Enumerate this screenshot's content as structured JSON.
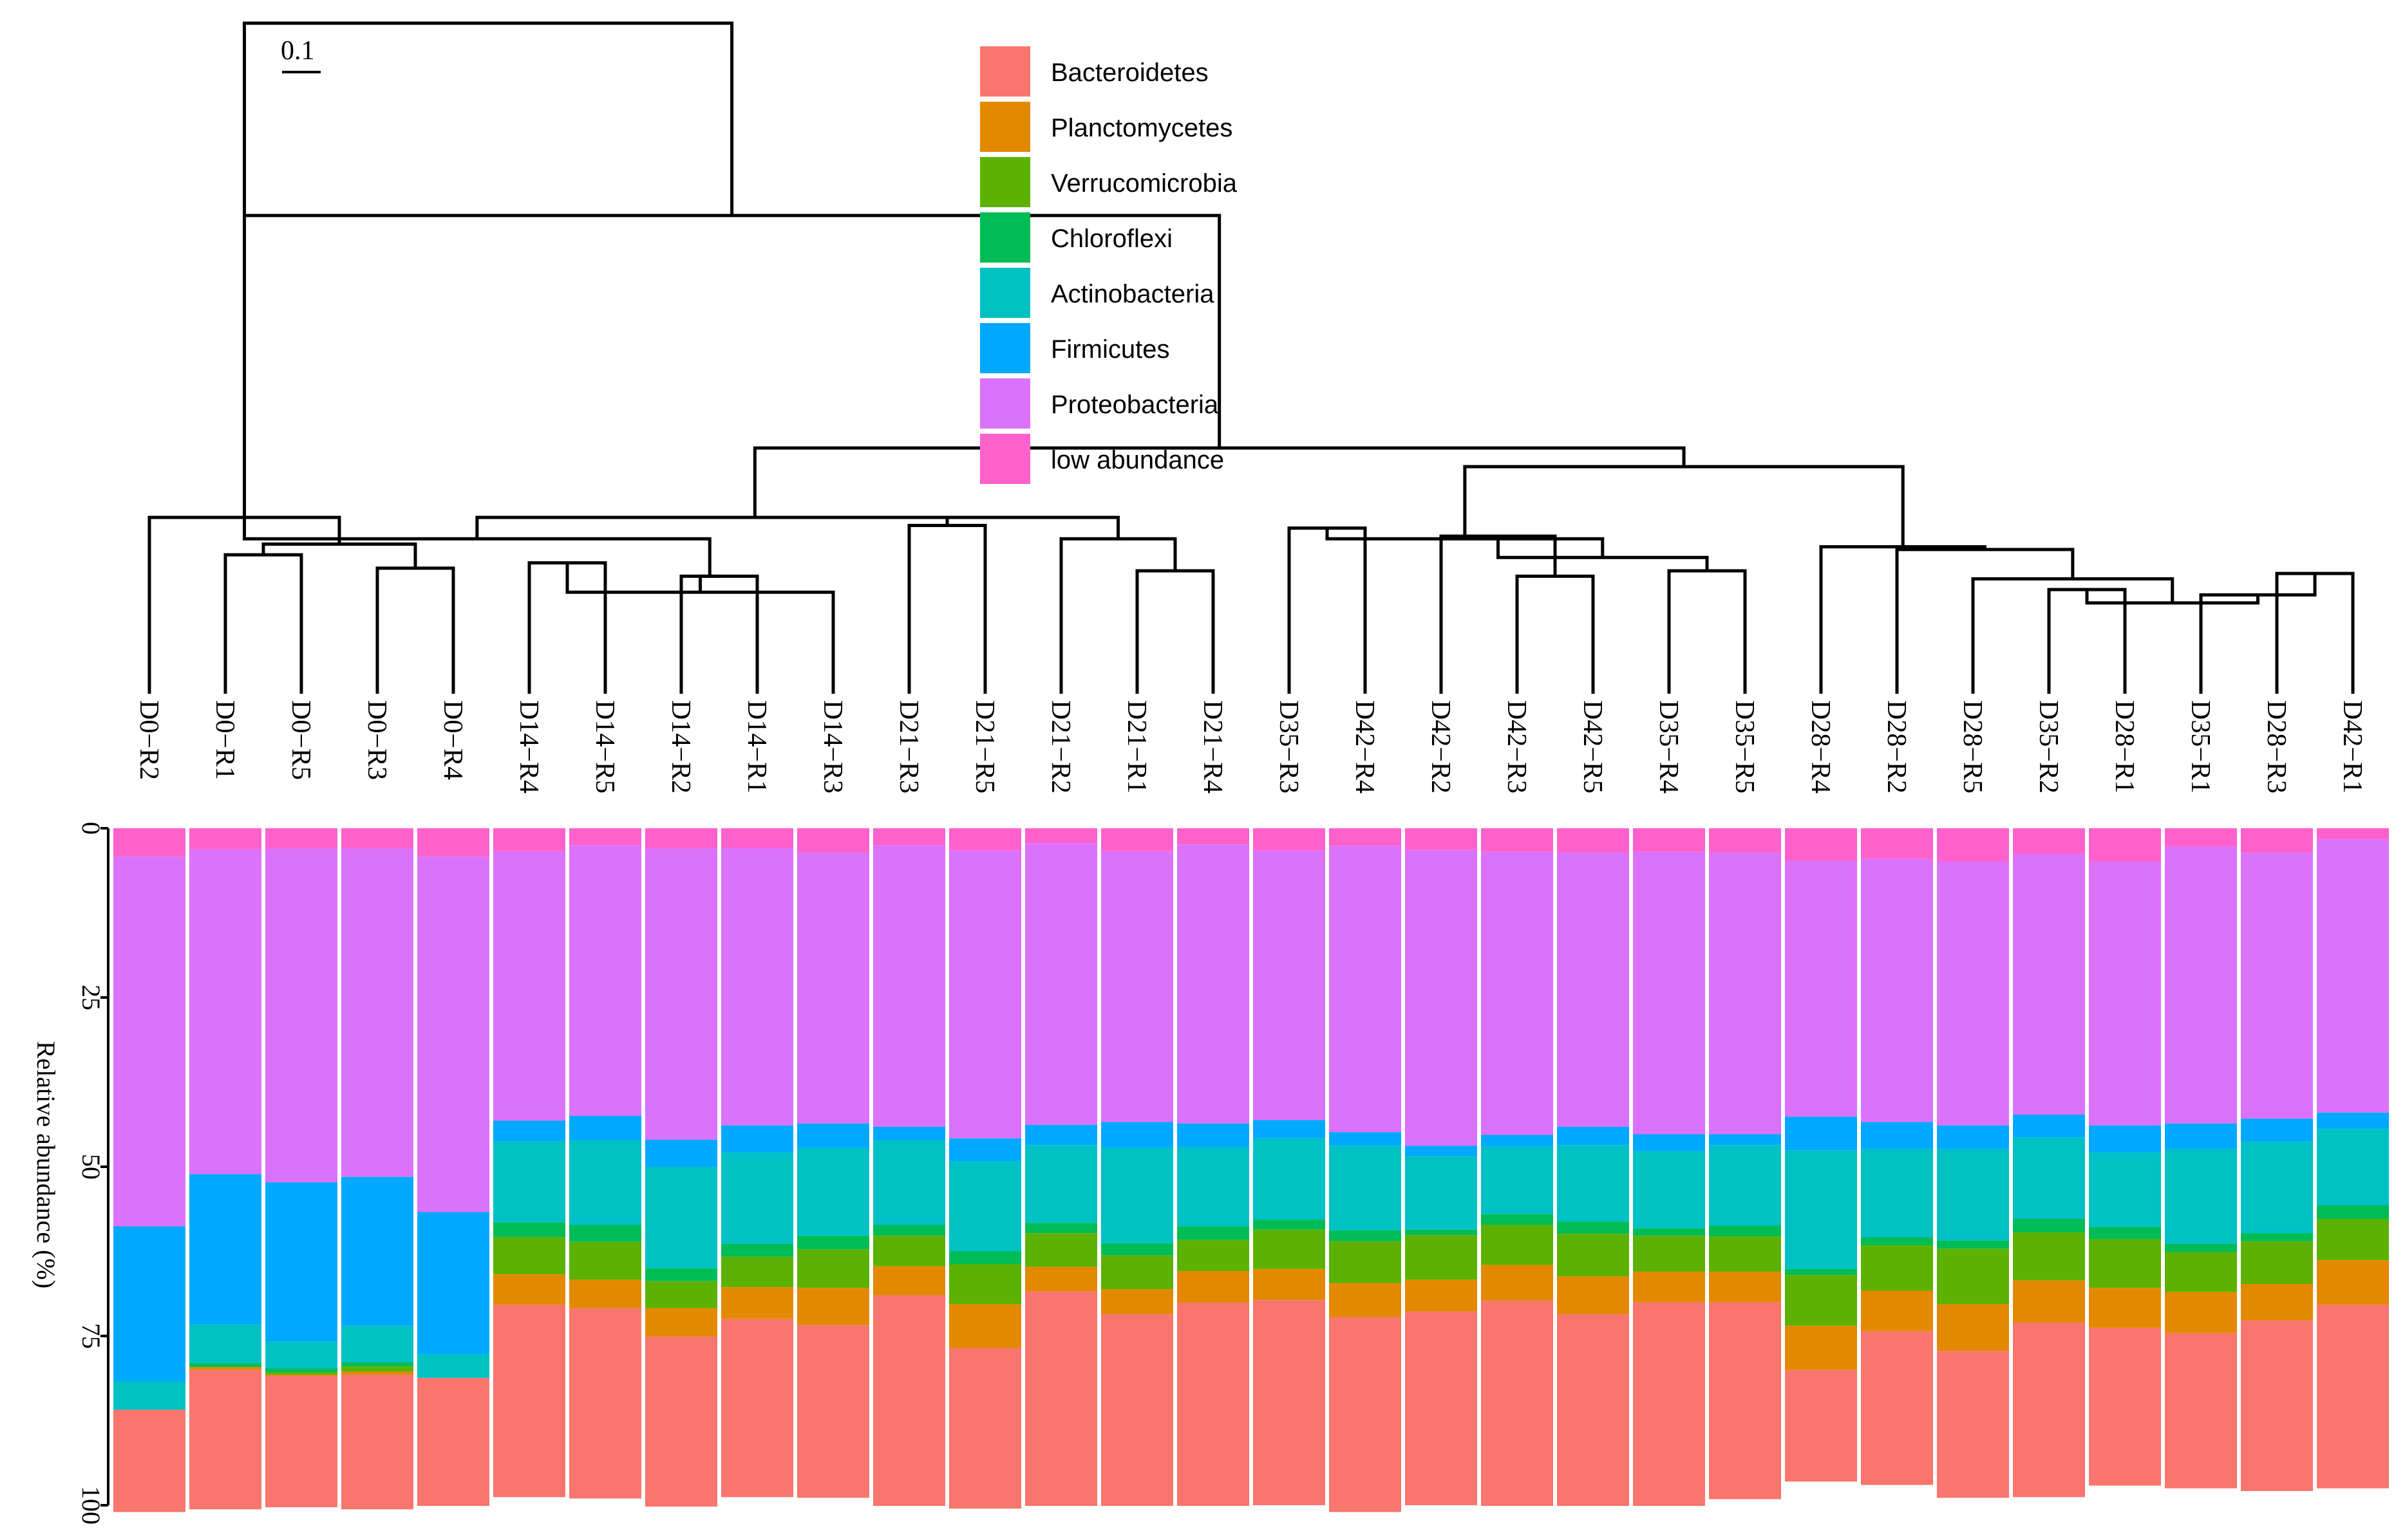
{
  "chart_data": {
    "type": "bar",
    "subtype": "stacked-bar-with-dendrogram",
    "ylabel": "Relative abundance (%)",
    "y_axis_direction": "downward",
    "ylim": [
      0,
      100
    ],
    "yticks": [
      "0",
      "25",
      "50",
      "75",
      "100"
    ],
    "scale_bar_label": "0.1",
    "legend_position": "top-center",
    "categories": [
      "D0−R2",
      "D0−R1",
      "D0−R5",
      "D0−R3",
      "D0−R4",
      "D14−R4",
      "D14−R5",
      "D14−R2",
      "D14−R1",
      "D14−R3",
      "D21−R3",
      "D21−R5",
      "D21−R2",
      "D21−R1",
      "D21−R4",
      "D35−R3",
      "D42−R4",
      "D42−R2",
      "D42−R3",
      "D42−R5",
      "D35−R4",
      "D35−R5",
      "D28−R4",
      "D28−R2",
      "D28−R5",
      "D35−R2",
      "D28−R1",
      "D35−R1",
      "D28−R3",
      "D42−R1"
    ],
    "series": [
      {
        "name": "low abundance",
        "color": "#FF61CC",
        "values": [
          4.2,
          3.1,
          3.0,
          3.0,
          4.2,
          3.4,
          2.5,
          3.0,
          2.9,
          3.6,
          2.5,
          3.3,
          2.2,
          3.4,
          2.4,
          3.3,
          2.6,
          3.2,
          3.5,
          3.6,
          3.5,
          3.6,
          4.8,
          4.5,
          4.9,
          3.8,
          4.9,
          2.7,
          3.6,
          1.6
        ]
      },
      {
        "name": "Proteobacteria",
        "color": "#DB72FB",
        "values": [
          54.6,
          48.0,
          49.3,
          48.5,
          52.5,
          39.8,
          40.0,
          43.0,
          41.0,
          40.0,
          41.6,
          42.5,
          41.6,
          40.0,
          41.2,
          39.8,
          42.3,
          43.7,
          41.8,
          40.5,
          41.7,
          41.6,
          37.8,
          38.9,
          39.0,
          38.5,
          39.0,
          40.9,
          39.3,
          40.4
        ]
      },
      {
        "name": "Firmicutes",
        "color": "#00A9FF",
        "values": [
          22.9,
          22.2,
          23.5,
          22.0,
          21.0,
          3.0,
          3.6,
          4.0,
          4.0,
          3.6,
          2.0,
          3.4,
          3.0,
          3.8,
          3.5,
          2.7,
          2.0,
          1.6,
          1.7,
          2.7,
          2.5,
          1.6,
          5.0,
          4.0,
          3.5,
          3.4,
          4.0,
          3.8,
          3.4,
          2.4
        ]
      },
      {
        "name": "Actinobacteria",
        "color": "#00C1C4",
        "values": [
          4.2,
          5.7,
          4.0,
          5.4,
          3.5,
          12.0,
          12.5,
          15.0,
          13.5,
          13.0,
          12.5,
          13.3,
          11.5,
          14.1,
          11.7,
          12.0,
          12.5,
          10.8,
          10.0,
          11.3,
          11.4,
          11.9,
          17.5,
          13.0,
          13.5,
          12.0,
          11.0,
          14.0,
          13.5,
          11.3
        ]
      },
      {
        "name": "Chloroflexi",
        "color": "#00BC56",
        "values": [
          0.0,
          0.6,
          0.6,
          0.6,
          0.0,
          2.2,
          2.5,
          1.9,
          1.9,
          2.0,
          1.6,
          1.9,
          1.5,
          1.8,
          2.0,
          1.5,
          1.6,
          0.8,
          1.6,
          1.8,
          1.1,
          1.6,
          0.9,
          1.2,
          1.2,
          2.0,
          1.8,
          1.2,
          1.2,
          2.0
        ]
      },
      {
        "name": "Verrucomicrobia",
        "color": "#5DB100",
        "values": [
          0.0,
          0.0,
          0.3,
          0.8,
          0.0,
          5.5,
          5.6,
          4.0,
          4.5,
          5.7,
          4.5,
          5.9,
          5.0,
          5.0,
          4.6,
          5.8,
          6.2,
          6.6,
          5.9,
          6.3,
          5.3,
          5.2,
          7.5,
          6.7,
          8.2,
          7.1,
          7.2,
          5.9,
          6.3,
          6.1
        ]
      },
      {
        "name": "Planctomycetes",
        "color": "#E38900",
        "values": [
          0.0,
          0.4,
          0.2,
          0.4,
          0.0,
          4.5,
          4.2,
          4.2,
          4.7,
          5.5,
          4.3,
          6.5,
          3.6,
          3.7,
          4.7,
          4.6,
          5.0,
          4.7,
          5.3,
          5.6,
          4.5,
          4.5,
          6.5,
          6.0,
          6.9,
          6.2,
          5.9,
          6.1,
          5.4,
          6.6
        ]
      },
      {
        "name": "Bacteroidetes",
        "color": "#F8766D",
        "values": [
          15.1,
          20.6,
          19.4,
          19.9,
          18.9,
          28.4,
          28.1,
          25.1,
          26.3,
          25.5,
          31.1,
          23.7,
          31.7,
          28.3,
          30.0,
          30.3,
          28.8,
          28.6,
          30.3,
          28.3,
          30.1,
          29.1,
          16.5,
          22.7,
          21.7,
          25.8,
          23.3,
          22.9,
          25.2,
          27.1
        ]
      }
    ],
    "dendrogram": {
      "description": "hierarchical clustering tree; leaves in the same order as categories",
      "merges": [
        [
          1,
          2,
          0.52
        ],
        [
          3,
          4,
          0.47
        ],
        [
          -1,
          -2,
          0.56
        ],
        [
          0,
          -3,
          0.66
        ],
        [
          5,
          6,
          0.49
        ],
        [
          7,
          8,
          0.44
        ],
        [
          -5,
          9,
          0.38
        ],
        [
          -6,
          -7,
          0.44
        ],
        [
          -4,
          -8,
          0.58
        ],
        [
          10,
          11,
          0.63
        ],
        [
          13,
          14,
          0.46
        ],
        [
          12,
          -11,
          0.58
        ],
        [
          -10,
          -12,
          0.66
        ],
        [
          -9,
          -13,
          0.66
        ],
        [
          15,
          16,
          0.62
        ],
        [
          18,
          19,
          0.44
        ],
        [
          17,
          -16,
          0.59
        ],
        [
          20,
          21,
          0.46
        ],
        [
          -17,
          -18,
          0.51
        ],
        [
          -15,
          -19,
          0.58
        ],
        [
          28,
          29,
          0.45
        ],
        [
          27,
          -21,
          0.37
        ],
        [
          25,
          26,
          0.39
        ],
        [
          -23,
          -22,
          0.34
        ],
        [
          24,
          -24,
          0.43
        ],
        [
          23,
          -25,
          0.54
        ],
        [
          22,
          -26,
          0.55
        ],
        [
          -20,
          -27,
          0.85
        ],
        [
          -14,
          -28,
          0.92
        ],
        [
          -4,
          -29,
          1.79
        ],
        [
          -4,
          -30,
          2.51
        ]
      ]
    }
  }
}
